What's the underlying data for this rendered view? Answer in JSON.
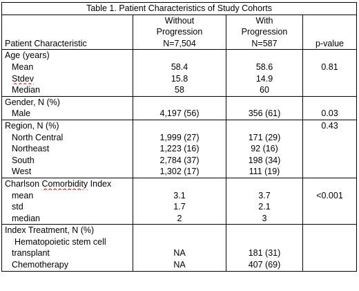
{
  "title": "Table 1. Patient Characteristics of Study Cohorts",
  "header": {
    "col1": "Patient Characteristic",
    "col2_line1": "Without",
    "col2_line2": "Progression",
    "col2_line3": "N=7,504",
    "col3_line1": "With",
    "col3_line2": "Progression",
    "col3_line3": "N=587",
    "col4": "p-value"
  },
  "age": {
    "label": "Age (years)",
    "rows": [
      {
        "label": "Mean",
        "without": "58.4",
        "with": "58.6",
        "p": "0.81"
      },
      {
        "label": "Stdev",
        "without": "15.8",
        "with": "14.9",
        "p": ""
      },
      {
        "label": "Median",
        "without": "58",
        "with": "60",
        "p": ""
      }
    ]
  },
  "gender": {
    "label": "Gender, N (%)",
    "rows": [
      {
        "label": "Male",
        "without": "4,197 (56)",
        "with": "356 (61)",
        "p": "0.03"
      }
    ]
  },
  "region": {
    "label": "Region, N (%)",
    "p": "0.43",
    "rows": [
      {
        "label": "North Central",
        "without": "1,999 (27)",
        "with": "171 (29)"
      },
      {
        "label": "Northeast",
        "without": "1,223 (16)",
        "with": "92 (16)"
      },
      {
        "label": "South",
        "without": "2,784 (37)",
        "with": "198 (34)"
      },
      {
        "label": "West",
        "without": "1,302 (17)",
        "with": "111 (19)"
      }
    ]
  },
  "charlson": {
    "label_pre": "Charlson ",
    "label_wavy": "Comorbidity",
    "label_post": " Index",
    "rows": [
      {
        "label": "mean",
        "without": "3.1",
        "with": "3.7",
        "p": "<0.001"
      },
      {
        "label": "std",
        "without": "1.7",
        "with": "2.1",
        "p": ""
      },
      {
        "label": "median",
        "without": "2",
        "with": "3",
        "p": ""
      }
    ]
  },
  "treatment": {
    "label": "Index Treatment, N (%)",
    "hsc_line1": "Hematopoietic stem cell",
    "hsc_line2": "transplant",
    "hsc_without": "NA",
    "hsc_with": "181 (31)",
    "chemo_label": "Chemotherapy",
    "chemo_without": "NA",
    "chemo_with": "407 (69)"
  }
}
